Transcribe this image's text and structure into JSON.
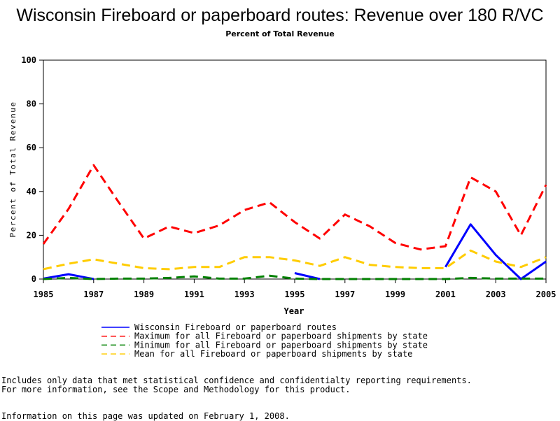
{
  "chart_data": {
    "type": "line",
    "title": "Wisconsin Fireboard or paperboard routes: Revenue over 180 R/VC",
    "subtitle": "Percent of Total Revenue",
    "xlabel": "Year",
    "ylabel": "Percent of Total Revenue",
    "ylim": [
      0,
      100
    ],
    "xlim": [
      1985,
      2005
    ],
    "x_ticks": [
      1985,
      1987,
      1989,
      1991,
      1993,
      1995,
      1997,
      1999,
      2001,
      2003,
      2005
    ],
    "y_ticks": [
      0,
      20,
      40,
      60,
      80,
      100
    ],
    "x": [
      1985,
      1986,
      1987,
      1988,
      1989,
      1990,
      1991,
      1992,
      1993,
      1994,
      1995,
      1996,
      1997,
      1998,
      1999,
      2000,
      2001,
      2002,
      2003,
      2004,
      2005
    ],
    "series": [
      {
        "name": "Wisconsin Fireboard or paperboard routes",
        "color": "#0000ff",
        "dash": "solid",
        "values": [
          0.2,
          2.2,
          0,
          null,
          null,
          null,
          null,
          null,
          null,
          null,
          2.7,
          0,
          null,
          null,
          null,
          null,
          5.5,
          25,
          11,
          0,
          8
        ]
      },
      {
        "name": "Maximum for all Fireboard or paperboard shipments by state",
        "color": "#ff0000",
        "dash": "dashed",
        "values": [
          16,
          32,
          52,
          35,
          18.5,
          24,
          21,
          24.5,
          31.5,
          35,
          26,
          18.5,
          29.5,
          24,
          16.5,
          13.5,
          15,
          46.5,
          40,
          20,
          43
        ]
      },
      {
        "name": "Minimum for all Fireboard or paperboard shipments by state",
        "color": "#008000",
        "dash": "dashed",
        "values": [
          0,
          0.5,
          0,
          0.2,
          0.2,
          0.5,
          1.2,
          0.2,
          0.2,
          1.5,
          0.2,
          0,
          0,
          0,
          0,
          0,
          0,
          0.5,
          0.2,
          0.2,
          0.2
        ]
      },
      {
        "name": "Mean for all Fireboard or paperboard shipments by state",
        "color": "#ffcc00",
        "dash": "dashed",
        "values": [
          4.5,
          7,
          9,
          7,
          5,
          4.5,
          5.5,
          5.5,
          10,
          10,
          8.5,
          6,
          10,
          6.5,
          5.5,
          5,
          5,
          13,
          8,
          5.5,
          10
        ]
      }
    ]
  },
  "notes": [
    "Includes only data that met statistical confidence and confidentialty reporting requirements.",
    "For more information, see the Scope and Methodology for this product.",
    "Information on this page was updated on February 1, 2008."
  ]
}
